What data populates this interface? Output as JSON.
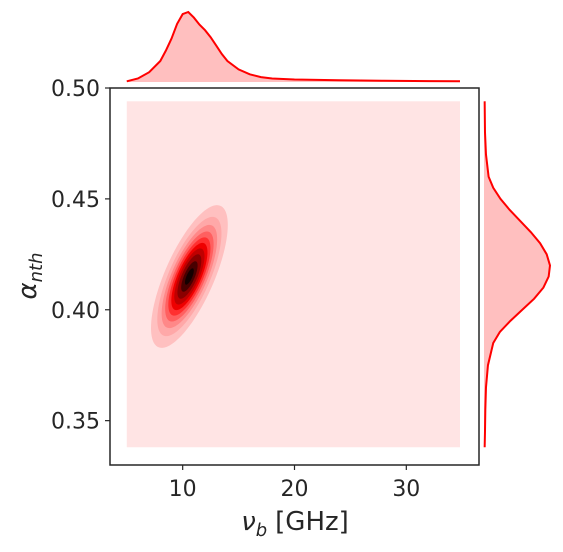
{
  "chart_data": {
    "type": "kde-joint",
    "title": "",
    "xlabel": {
      "symbol": "ν",
      "subscript": "b",
      "unit": "[GHz]"
    },
    "ylabel": {
      "symbol": "α",
      "subscript": "nth"
    },
    "xlim": [
      3.5,
      36.5
    ],
    "ylim": [
      0.33,
      0.5
    ],
    "xticks": [
      {
        "value": 10,
        "label": "10"
      },
      {
        "value": 20,
        "label": "20"
      },
      {
        "value": 30,
        "label": "30"
      }
    ],
    "yticks": [
      {
        "value": 0.35,
        "label": "0.35"
      },
      {
        "value": 0.4,
        "label": "0.40"
      },
      {
        "value": 0.45,
        "label": "0.45"
      },
      {
        "value": 0.5,
        "label": "0.50"
      }
    ],
    "grid": false,
    "legend": "none",
    "kde": {
      "center_x": 10.6,
      "center_y": 0.415,
      "sigma_x": 1.6,
      "sigma_y": 0.015,
      "correlation": 0.72,
      "background_region": {
        "x": [
          5,
          34.8
        ],
        "y": [
          0.338,
          0.494
        ]
      },
      "levels": [
        {
          "level": 0.1,
          "color": "#ffc0c0"
        },
        {
          "level": 0.2,
          "color": "#ffa8a8"
        },
        {
          "level": 0.3,
          "color": "#ff8888"
        },
        {
          "level": 0.4,
          "color": "#ff6060"
        },
        {
          "level": 0.5,
          "color": "#ff3030"
        },
        {
          "level": 0.6,
          "color": "#ee0000"
        },
        {
          "level": 0.7,
          "color": "#c00000"
        },
        {
          "level": 0.8,
          "color": "#8a0000"
        },
        {
          "level": 0.9,
          "color": "#480000"
        },
        {
          "level": 0.97,
          "color": "#140000"
        }
      ]
    },
    "marginal_x": {
      "x": [
        5,
        6,
        7,
        8,
        8.5,
        9,
        9.5,
        10,
        10.5,
        11,
        11.5,
        12,
        12.5,
        13,
        13.5,
        14,
        15,
        16,
        17,
        18,
        20,
        24,
        28,
        32,
        34.8
      ],
      "density": [
        0.01,
        0.05,
        0.14,
        0.3,
        0.45,
        0.62,
        0.83,
        0.97,
        1.0,
        0.92,
        0.82,
        0.74,
        0.64,
        0.52,
        0.4,
        0.3,
        0.18,
        0.11,
        0.07,
        0.05,
        0.035,
        0.025,
        0.018,
        0.012,
        0.01
      ]
    },
    "marginal_y": {
      "y": [
        0.338,
        0.345,
        0.355,
        0.365,
        0.375,
        0.385,
        0.39,
        0.395,
        0.4,
        0.405,
        0.41,
        0.415,
        0.42,
        0.425,
        0.43,
        0.435,
        0.44,
        0.445,
        0.45,
        0.455,
        0.46,
        0.47,
        0.48,
        0.494
      ],
      "density": [
        0.01,
        0.015,
        0.02,
        0.03,
        0.06,
        0.14,
        0.24,
        0.4,
        0.58,
        0.76,
        0.9,
        0.98,
        1.0,
        0.95,
        0.85,
        0.71,
        0.55,
        0.39,
        0.25,
        0.14,
        0.07,
        0.03,
        0.015,
        0.01
      ]
    },
    "colors": {
      "line": "#ff0000",
      "fill": "#ffbfbf",
      "background": "#ffe4e4",
      "axes": "#262626"
    }
  }
}
